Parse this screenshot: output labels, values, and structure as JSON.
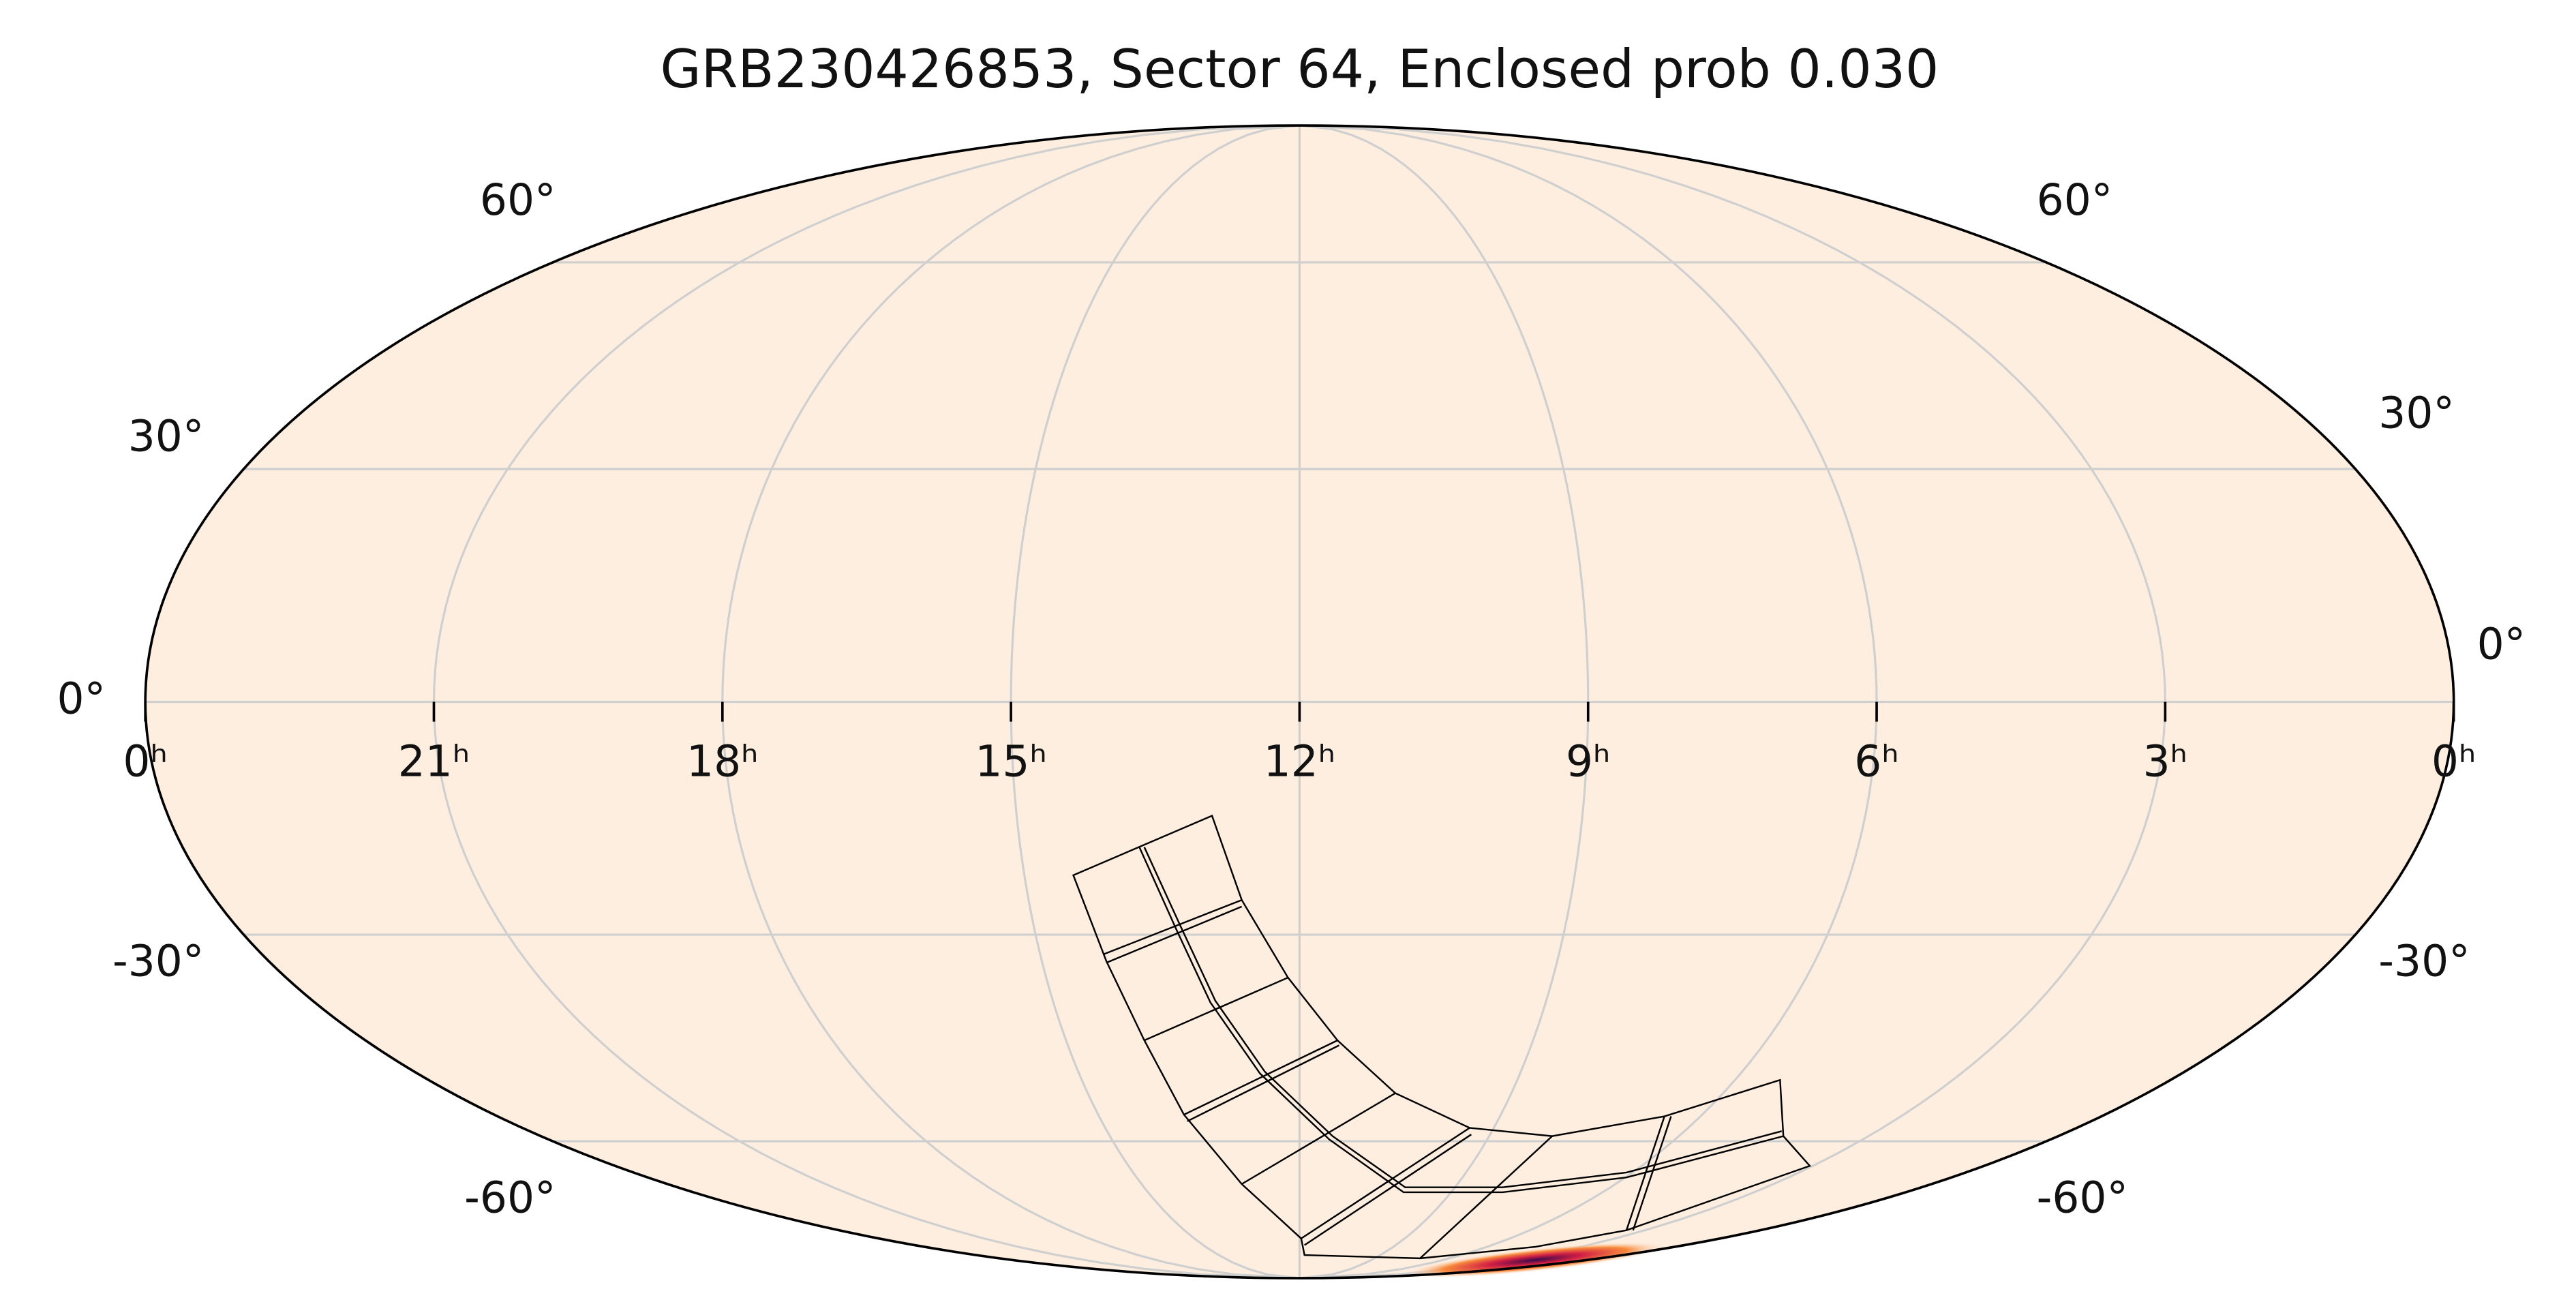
{
  "chart_data": {
    "type": "mollweide",
    "title": "GRB230426853, Sector 64, Enclosed prob 0.030",
    "xlim": [
      24,
      0
    ],
    "xticks": [
      {
        "value": 24,
        "label": "0ʰ"
      },
      {
        "value": 21,
        "label": "21ʰ"
      },
      {
        "value": 18,
        "label": "18ʰ"
      },
      {
        "value": 15,
        "label": "15ʰ"
      },
      {
        "value": 12,
        "label": "12ʰ"
      },
      {
        "value": 9,
        "label": "9ʰ"
      },
      {
        "value": 6,
        "label": "6ʰ"
      },
      {
        "value": 3,
        "label": "3ʰ"
      },
      {
        "value": 0,
        "label": "0ʰ"
      }
    ],
    "ylim": [
      -90,
      90
    ],
    "yticks": [
      {
        "value": 60,
        "label": "60°"
      },
      {
        "value": 30,
        "label": "30°"
      },
      {
        "value": 0,
        "label": "0°"
      },
      {
        "value": -30,
        "label": "-30°"
      },
      {
        "value": -60,
        "label": "-60°"
      }
    ],
    "grid": true,
    "color": "#fdeee0"
  }
}
